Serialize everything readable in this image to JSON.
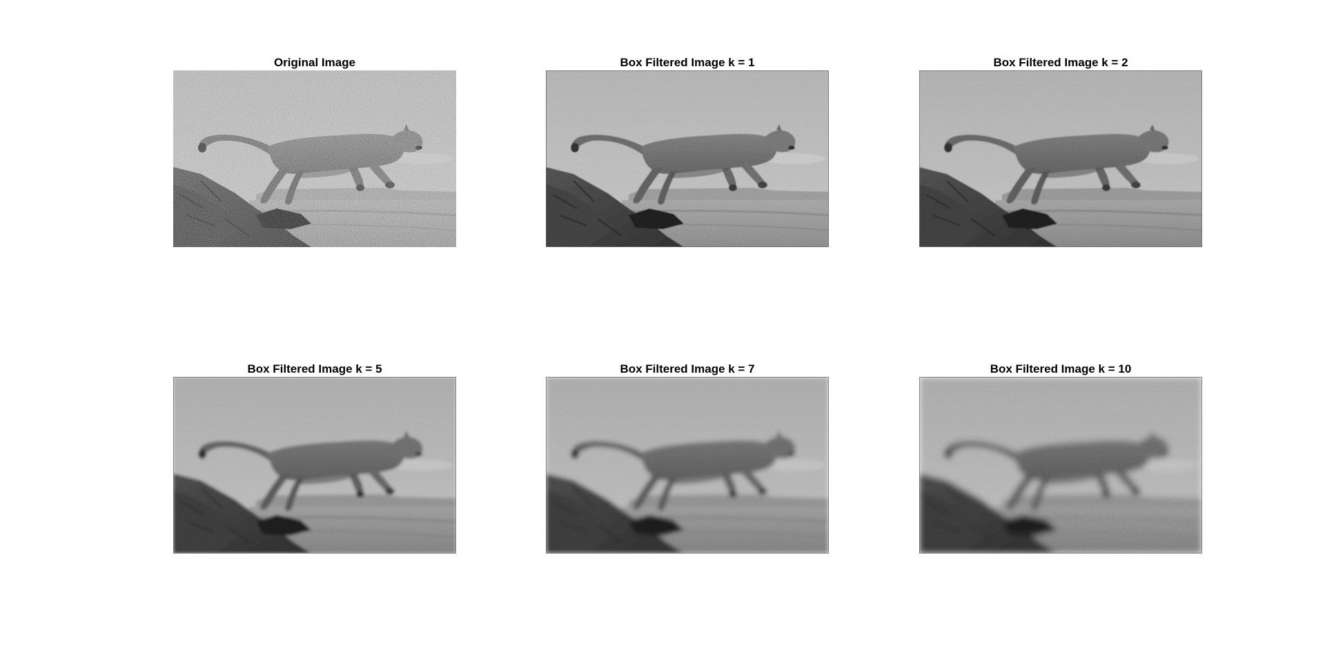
{
  "figure": {
    "panels": [
      {
        "title": "Original Image",
        "noise": 1.0,
        "blur": 0
      },
      {
        "title": "Box Filtered Image k = 1",
        "noise": 0.55,
        "blur": 1
      },
      {
        "title": "Box Filtered Image k = 2",
        "noise": 0.38,
        "blur": 2
      },
      {
        "title": "Box Filtered Image k = 5",
        "noise": 0.2,
        "blur": 5
      },
      {
        "title": "Box Filtered Image k = 7",
        "noise": 0.14,
        "blur": 7
      },
      {
        "title": "Box Filtered Image k = 10",
        "noise": 0.1,
        "blur": 10
      }
    ]
  }
}
